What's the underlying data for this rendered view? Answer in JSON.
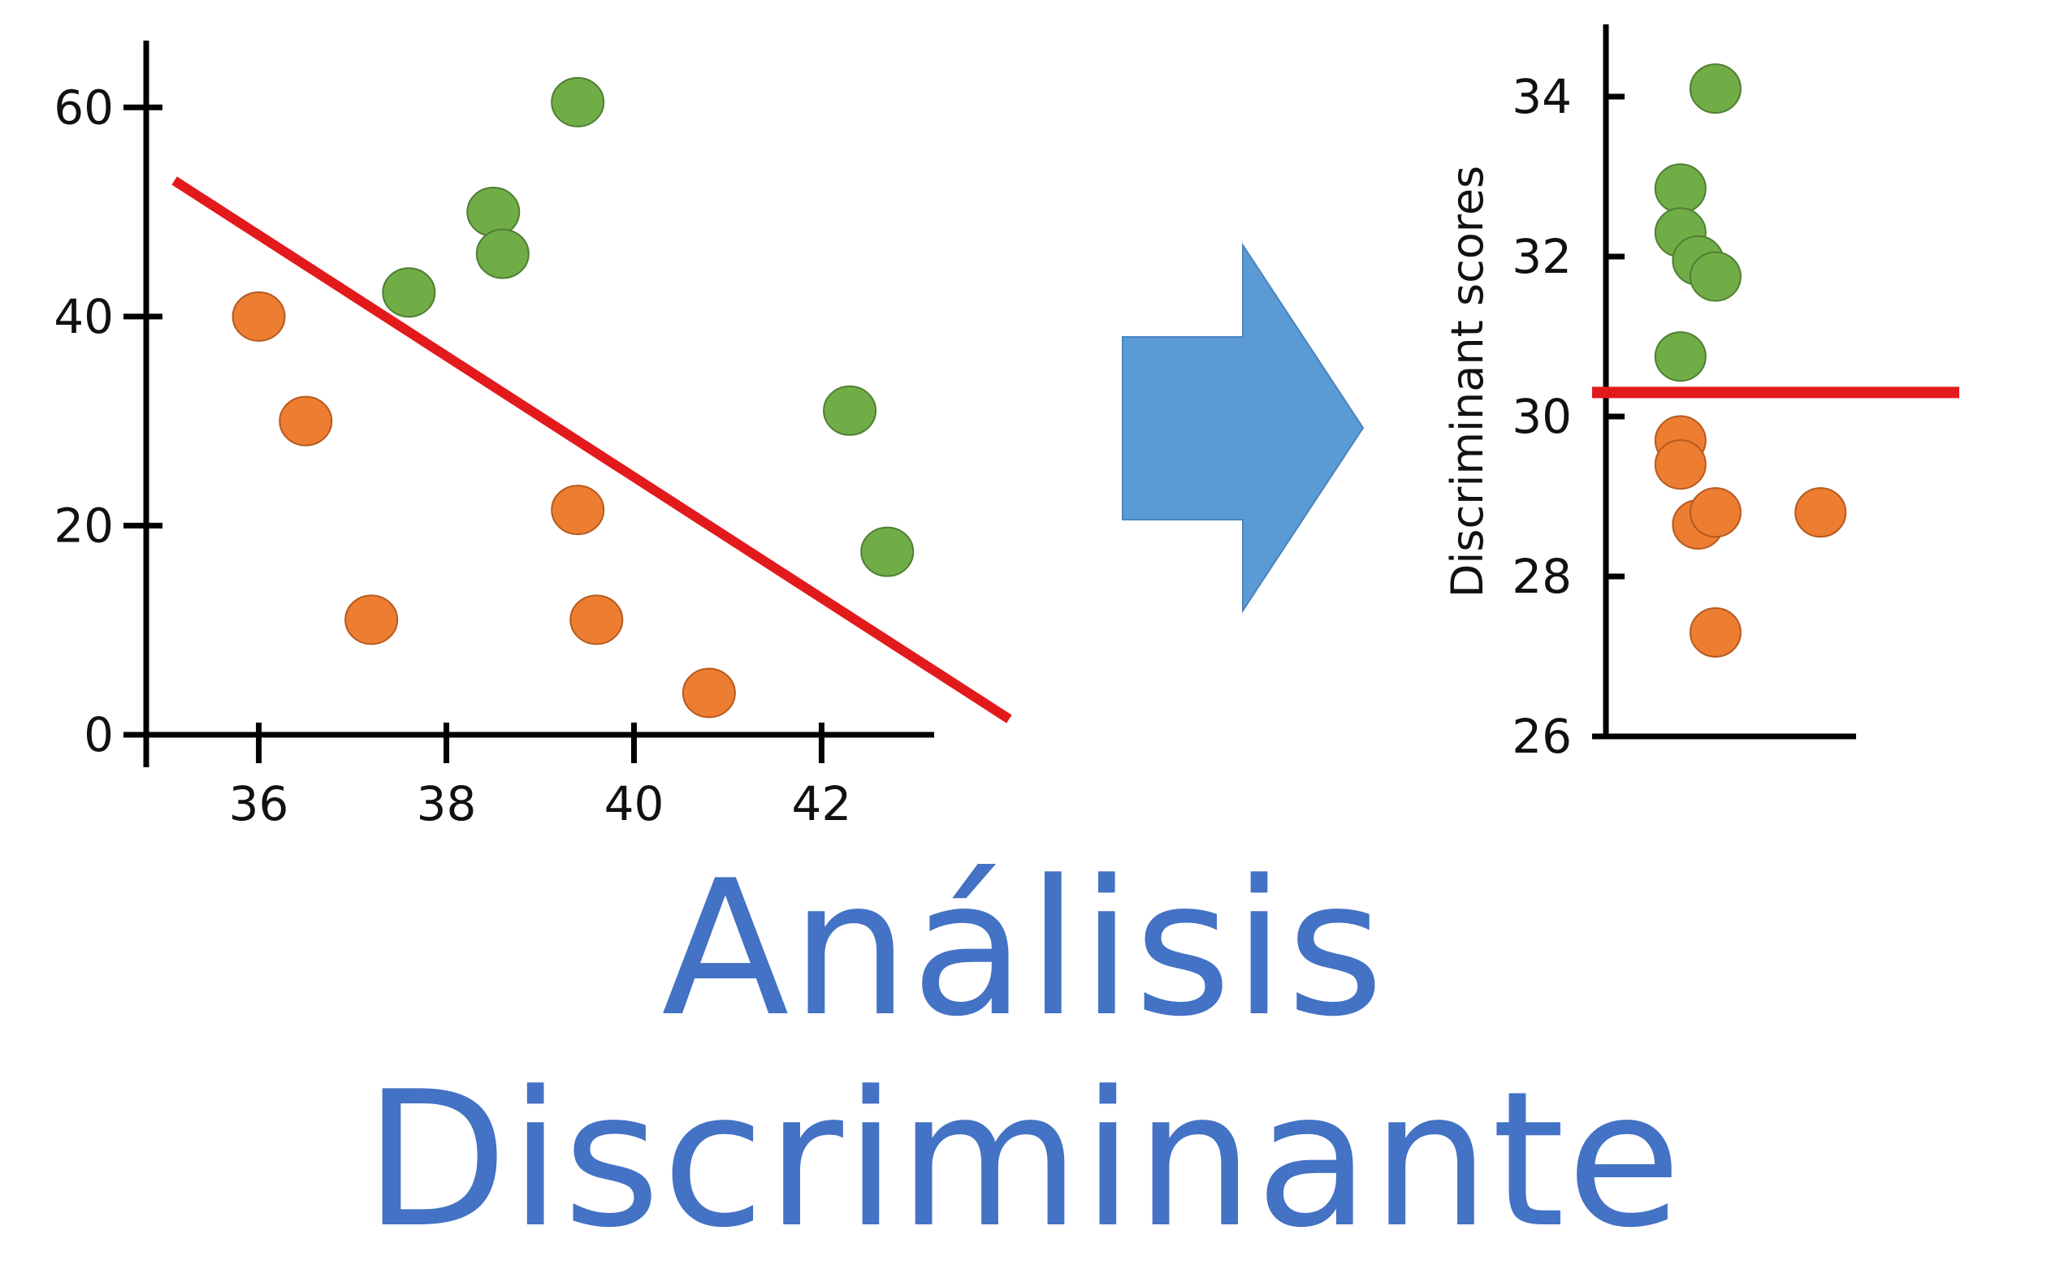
{
  "title": "Análisis Discriminante",
  "colors": {
    "green": "#70ad47",
    "orange": "#ed7d31",
    "red": "#e31a1c",
    "arrow": "#5b9bd5",
    "title": "#4472c4",
    "axis": "#000000"
  },
  "arrow_icon": "right-arrow-icon",
  "chart_data": [
    {
      "type": "scatter",
      "title": "",
      "xlabel": "",
      "ylabel": "",
      "xlim": [
        34.8,
        43.2
      ],
      "ylim": [
        0,
        66
      ],
      "xticks": [
        "36",
        "38",
        "40",
        "42"
      ],
      "yticks": [
        "0",
        "20",
        "40",
        "60"
      ],
      "series": [
        {
          "color": "green",
          "points": [
            [
              37.6,
              42.3
            ],
            [
              38.5,
              50
            ],
            [
              38.6,
              46
            ],
            [
              39.4,
              60.5
            ],
            [
              42.3,
              31
            ],
            [
              42.7,
              17.5
            ]
          ]
        },
        {
          "color": "orange",
          "points": [
            [
              36,
              40
            ],
            [
              36.5,
              30
            ],
            [
              37.2,
              11
            ],
            [
              39.4,
              21.5
            ],
            [
              39.6,
              11
            ],
            [
              40.8,
              4
            ]
          ]
        }
      ],
      "lines": [
        {
          "color": "red",
          "from": [
            35.1,
            53
          ],
          "to": [
            44.0,
            1.5
          ]
        }
      ]
    },
    {
      "type": "scatter",
      "title": "",
      "xlabel": "",
      "ylabel": "Discriminant scores",
      "ylim": [
        26,
        34.7
      ],
      "yticks": [
        "26",
        "28",
        "30",
        "32",
        "34"
      ],
      "series": [
        {
          "color": "green",
          "points": [
            [
              0.98,
              34.1
            ],
            [
              0.96,
              32.85
            ],
            [
              0.96,
              32.3
            ],
            [
              0.97,
              31.95
            ],
            [
              0.98,
              31.75
            ],
            [
              0.96,
              30.75
            ]
          ]
        },
        {
          "color": "orange",
          "points": [
            [
              0.96,
              29.7
            ],
            [
              0.96,
              29.4
            ],
            [
              0.97,
              28.65
            ],
            [
              0.98,
              28.8
            ],
            [
              1.04,
              28.8
            ],
            [
              0.98,
              27.3
            ]
          ]
        }
      ],
      "hline": {
        "color": "red",
        "y": 30.3
      }
    }
  ]
}
